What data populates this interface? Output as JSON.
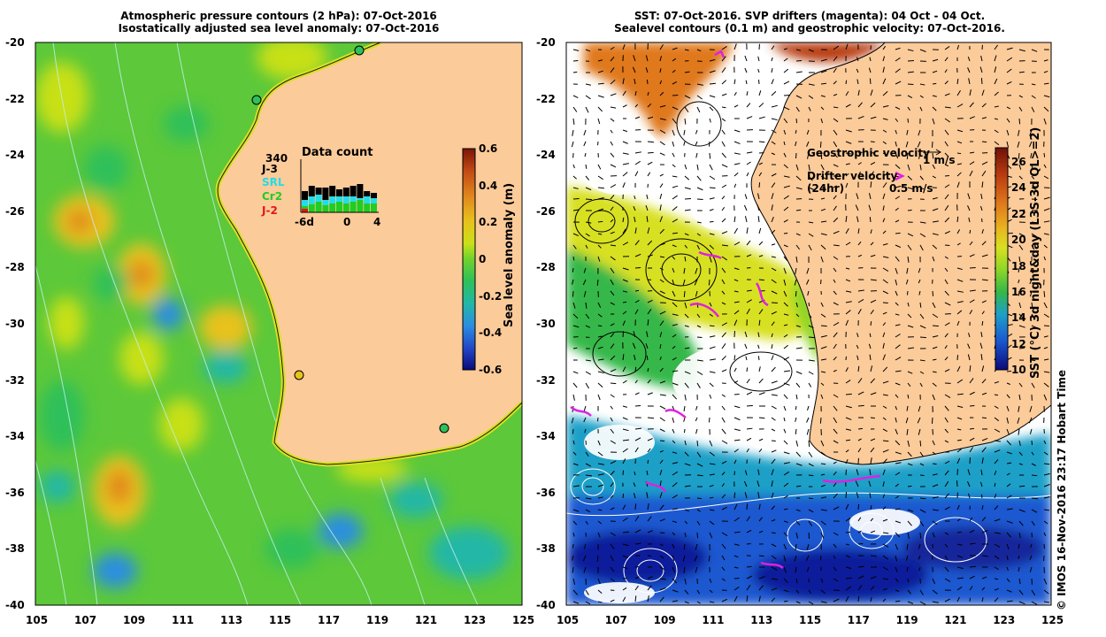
{
  "left_panel": {
    "title_line1": "Atmospheric pressure contours (2 hPa): 07-Oct-2016",
    "title_line2": "Isostatically adjusted sea level anomaly: 07-Oct-2016",
    "x_ticks": [
      "105",
      "107",
      "109",
      "111",
      "113",
      "115",
      "117",
      "119",
      "121",
      "123",
      "125"
    ],
    "y_ticks": [
      "-20",
      "-22",
      "-24",
      "-26",
      "-28",
      "-30",
      "-32",
      "-34",
      "-36",
      "-38",
      "-40"
    ],
    "colorbar": {
      "label": "Sea level anomaly (m)",
      "ticks": [
        "0.6",
        "0.4",
        "0.2",
        "0",
        "-0.2",
        "-0.4",
        "-0.6"
      ],
      "stops": [
        "#7a1508",
        "#c24a14",
        "#e08a1e",
        "#e8c21c",
        "#c8e018",
        "#6ed22e",
        "#2ec05a",
        "#22b7a6",
        "#2b8ee0",
        "#2448c8",
        "#0a0a7a"
      ]
    },
    "data_count": {
      "title": "Data count",
      "max_label": "340",
      "missions": [
        {
          "name": "J-3",
          "color": "#000000"
        },
        {
          "name": "SRL",
          "color": "#22dde8"
        },
        {
          "name": "Cr2",
          "color": "#22cc22"
        },
        {
          "name": "J-2",
          "color": "#e01818"
        }
      ],
      "x_labels": [
        "-6d",
        "0",
        "4"
      ]
    }
  },
  "right_panel": {
    "title_line1": "SST: 07-Oct-2016. SVP drifters (magenta): 04 Oct - 04 Oct.",
    "title_line2": "Sealevel contours (0.1 m) and geostrophic velocity: 07-Oct-2016.",
    "x_ticks": [
      "105",
      "107",
      "109",
      "111",
      "113",
      "115",
      "117",
      "119",
      "121",
      "123",
      "125"
    ],
    "y_ticks": [
      "-20",
      "-22",
      "-24",
      "-26",
      "-28",
      "-30",
      "-32",
      "-34",
      "-36",
      "-38",
      "-40"
    ],
    "legend": {
      "geo_label": "Geostrophic velocity",
      "geo_scale": "1 m/s",
      "drifter_label": "Drifter velocity",
      "drifter_sub": "(24hr)",
      "drifter_scale": "0.5 m/s"
    },
    "colorbar": {
      "label": "SST (°C) 3d night&day (L3S-3d QL>=2)",
      "ticks": [
        "26",
        "24",
        "22",
        "20",
        "18",
        "16",
        "14",
        "12",
        "10"
      ],
      "stops": [
        "#6e1008",
        "#b83a10",
        "#e0781c",
        "#e8b820",
        "#d8e020",
        "#8ed628",
        "#34b848",
        "#1ea0c8",
        "#1a58d0",
        "#0a0a7a"
      ]
    }
  },
  "footer": {
    "credit": "© IMOS 16-Nov-2016 23:17 Hobart Time"
  },
  "colors": {
    "land": "#fccb9a",
    "drifter": "#e020e0"
  }
}
